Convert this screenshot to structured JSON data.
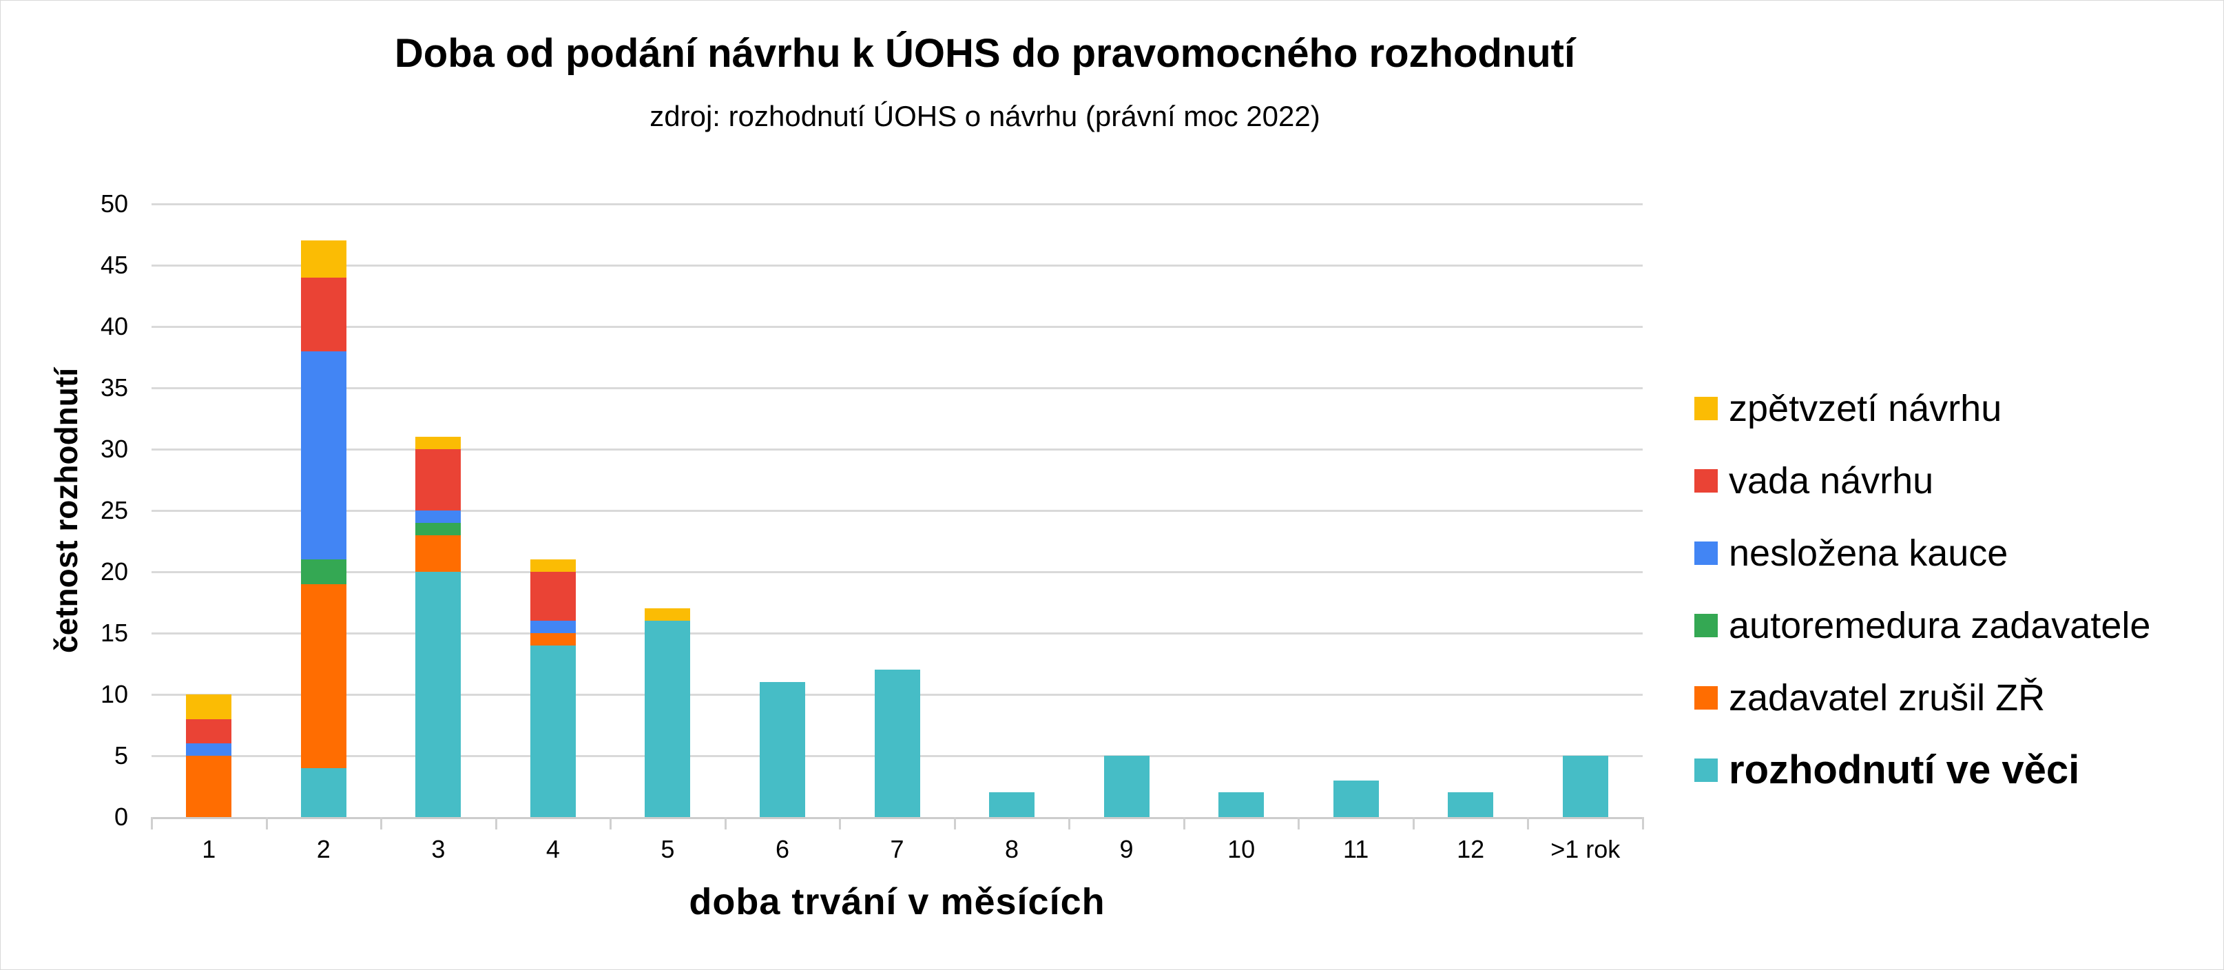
{
  "chart_data": {
    "type": "bar",
    "stacked": true,
    "title": "Doba od podání návrhu k ÚOHS do pravomocného rozhodnutí",
    "subtitle": "zdroj: rozhodnutí ÚOHS o návrhu (právní moc 2022)",
    "xlabel": "doba trvání v měsících",
    "ylabel": "četnost rozhodnutí",
    "ylim": [
      0,
      50
    ],
    "yticks": [
      0,
      5,
      10,
      15,
      20,
      25,
      30,
      35,
      40,
      45,
      50
    ],
    "grid": true,
    "legend_position": "right",
    "categories": [
      "1",
      "2",
      "3",
      "4",
      "5",
      "6",
      "7",
      "8",
      "9",
      "10",
      "11",
      "12",
      ">1 rok"
    ],
    "series": [
      {
        "name": "rozhodnutí ve věci",
        "color": "#46bdc6",
        "values": [
          0,
          4,
          20,
          14,
          16,
          11,
          12,
          2,
          5,
          2,
          3,
          2,
          5
        ]
      },
      {
        "name": "zadavatel zrušil ZŘ",
        "color": "#ff6d01",
        "values": [
          5,
          15,
          3,
          1,
          0,
          0,
          0,
          0,
          0,
          0,
          0,
          0,
          0
        ]
      },
      {
        "name": "autoremedura zadavatele",
        "color": "#34a853",
        "values": [
          0,
          2,
          1,
          0,
          0,
          0,
          0,
          0,
          0,
          0,
          0,
          0,
          0
        ]
      },
      {
        "name": "nesložena kauce",
        "color": "#4285f4",
        "values": [
          1,
          17,
          1,
          1,
          0,
          0,
          0,
          0,
          0,
          0,
          0,
          0,
          0
        ]
      },
      {
        "name": "vada návrhu",
        "color": "#ea4335",
        "values": [
          2,
          6,
          5,
          4,
          0,
          0,
          0,
          0,
          0,
          0,
          0,
          0,
          0
        ]
      },
      {
        "name": "zpětvzetí návrhu",
        "color": "#fbbc04",
        "values": [
          2,
          3,
          1,
          1,
          1,
          0,
          0,
          0,
          0,
          0,
          0,
          0,
          0
        ]
      }
    ],
    "totals": [
      10,
      47,
      31,
      21,
      17,
      11,
      12,
      2,
      5,
      2,
      3,
      2,
      5
    ]
  },
  "legend": [
    {
      "label": "zpětvzetí návrhu",
      "color": "#fbbc04",
      "bold": false
    },
    {
      "label": "vada návrhu",
      "color": "#ea4335",
      "bold": false
    },
    {
      "label": "nesložena kauce",
      "color": "#4285f4",
      "bold": false
    },
    {
      "label": "autoremedura zadavatele",
      "color": "#34a853",
      "bold": false
    },
    {
      "label": "zadavatel zrušil ZŘ",
      "color": "#ff6d01",
      "bold": false
    },
    {
      "label": "rozhodnutí ve věci",
      "color": "#46bdc6",
      "bold": true
    }
  ]
}
